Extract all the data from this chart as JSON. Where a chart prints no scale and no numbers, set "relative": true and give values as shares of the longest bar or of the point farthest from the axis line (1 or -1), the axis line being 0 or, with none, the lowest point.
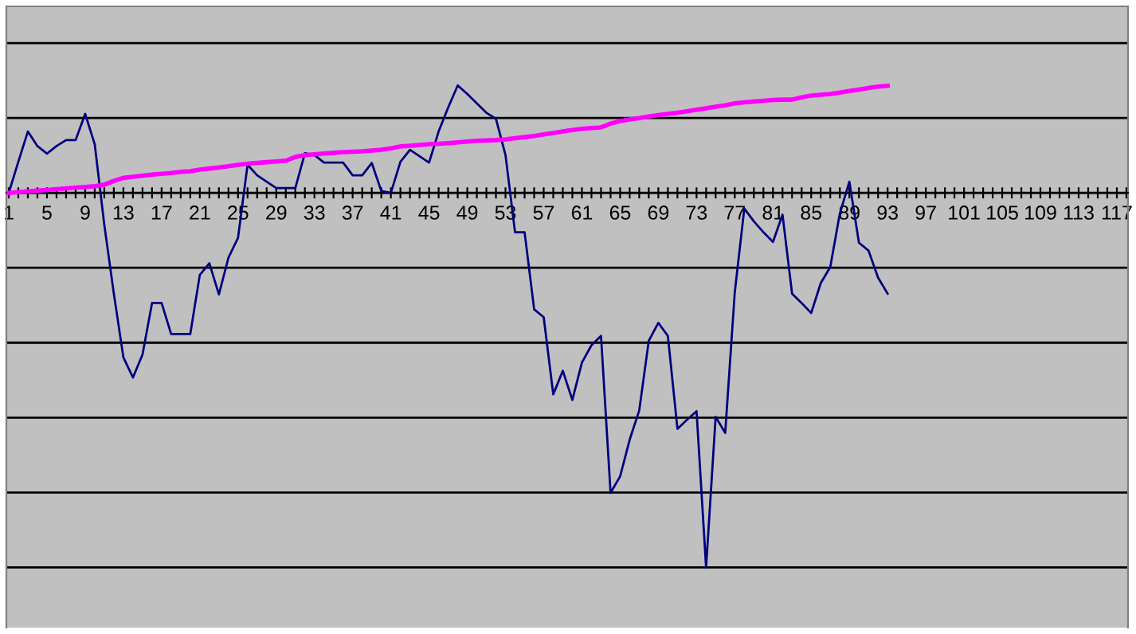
{
  "chart_data": {
    "type": "line",
    "relative": true,
    "grid": "y",
    "marker": "none",
    "line_style": "solid",
    "categories": [
      "1",
      null,
      null,
      null,
      "5",
      null,
      null,
      null,
      "9",
      null,
      null,
      null,
      "13",
      null,
      null,
      null,
      "17",
      null,
      null,
      null,
      "21",
      null,
      null,
      null,
      "25",
      null,
      null,
      null,
      "29",
      null,
      null,
      null,
      "33",
      null,
      null,
      null,
      "37",
      null,
      null,
      null,
      "41",
      null,
      null,
      null,
      "45",
      null,
      null,
      null,
      "49",
      null,
      null,
      null,
      "53",
      null,
      null,
      null,
      "57",
      null,
      null,
      null,
      "61",
      null,
      null,
      null,
      "65",
      null,
      null,
      null,
      "69",
      null,
      null,
      null,
      "73",
      null,
      null,
      null,
      "77",
      null,
      null,
      null,
      "81",
      null,
      null,
      null,
      "85",
      null,
      null,
      null,
      "89",
      null,
      null,
      null,
      "93",
      null,
      null,
      null,
      "97",
      null,
      null,
      null,
      "101",
      null,
      null,
      null,
      "105",
      null,
      null,
      null,
      "109",
      null,
      null,
      null,
      "113",
      null,
      null,
      null,
      "117",
      null
    ],
    "series": [
      {
        "color": "#000080",
        "values": [
          0,
          0.083,
          0.164,
          0.125,
          0.105,
          0.125,
          0.141,
          0.141,
          0.211,
          0.13,
          -0.085,
          -0.269,
          -0.439,
          -0.493,
          -0.432,
          -0.294,
          -0.294,
          -0.377,
          -0.377,
          -0.377,
          -0.219,
          -0.188,
          -0.271,
          -0.173,
          -0.12,
          0.075,
          0.047,
          0.03,
          0.013,
          0.013,
          0.013,
          0.106,
          0.101,
          0.081,
          0.081,
          0.081,
          0.047,
          0.047,
          0.08,
          0.005,
          0,
          0.083,
          0.115,
          0.098,
          0.081,
          0.164,
          0.228,
          0.287,
          0.264,
          0.239,
          0.214,
          0.198,
          0.101,
          -0.105,
          -0.105,
          -0.311,
          -0.332,
          -0.538,
          -0.475,
          -0.553,
          -0.453,
          -0.407,
          -0.382,
          -0.801,
          -0.757,
          -0.659,
          -0.581,
          -0.395,
          -0.347,
          -0.382,
          -0.63,
          -0.606,
          -0.583,
          -1,
          -0.598,
          -0.641,
          -0.266,
          -0.042,
          -0.076,
          -0.105,
          -0.131,
          -0.058,
          -0.269,
          -0.294,
          -0.321,
          -0.241,
          -0.198,
          -0.055,
          0.03,
          -0.133,
          -0.154,
          -0.226,
          -0.269,
          null,
          null,
          null,
          null,
          null,
          null,
          null,
          null,
          null,
          null,
          null,
          null,
          null,
          null,
          null,
          null,
          null,
          null,
          null,
          null,
          null,
          null,
          null,
          null,
          null
        ]
      },
      {
        "color": "#ff00ff",
        "values": [
          0,
          0.002,
          0.004,
          0.006,
          0.008,
          0.01,
          0.012,
          0.014,
          0.016,
          0.018,
          0.022,
          0.032,
          0.04,
          0.043,
          0.046,
          0.049,
          0.051,
          0.053,
          0.056,
          0.058,
          0.062,
          0.065,
          0.068,
          0.071,
          0.075,
          0.078,
          0.08,
          0.082,
          0.084,
          0.086,
          0.096,
          0.101,
          0.103,
          0.105,
          0.107,
          0.109,
          0.11,
          0.111,
          0.113,
          0.115,
          0.119,
          0.124,
          0.126,
          0.128,
          0.13,
          0.131,
          0.133,
          0.135,
          0.137,
          0.139,
          0.14,
          0.141,
          0.143,
          0.146,
          0.149,
          0.152,
          0.156,
          0.16,
          0.164,
          0.168,
          0.171,
          0.173,
          0.175,
          0.185,
          0.192,
          0.196,
          0.2,
          0.204,
          0.208,
          0.211,
          0.214,
          0.218,
          0.222,
          0.226,
          0.23,
          0.234,
          0.239,
          0.242,
          0.244,
          0.246,
          0.248,
          0.249,
          0.249,
          0.255,
          0.26,
          0.262,
          0.264,
          0.268,
          0.272,
          0.276,
          0.28,
          0.284,
          0.286,
          null,
          null,
          null,
          null,
          null,
          null,
          null,
          null,
          null,
          null,
          null,
          null,
          null,
          null,
          null,
          null,
          null,
          null,
          null,
          null,
          null,
          null,
          null,
          null,
          null
        ]
      }
    ]
  }
}
